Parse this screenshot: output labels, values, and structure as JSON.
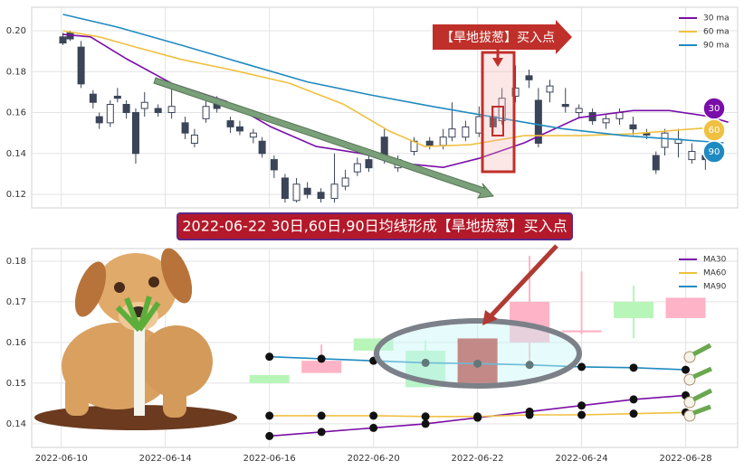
{
  "chart_data": [
    {
      "type": "candlestick",
      "xlim": [
        -0.57,
        13.0
      ],
      "ylim": [
        0.1134,
        0.2115
      ],
      "yticks": [
        0.12,
        0.14,
        0.16,
        0.18,
        {
          "value": 0.2,
          "label": "0.20"
        }
      ],
      "grid": true,
      "legend": "upper right",
      "up_color": "#ffffff",
      "down_color": "#3b4458",
      "candles": {
        "x": [
          0.03,
          0.17,
          0.38,
          0.61,
          0.73,
          0.94,
          1.08,
          1.25,
          1.43,
          1.6,
          1.86,
          2.12,
          2.38,
          2.56,
          2.78,
          2.99,
          3.25,
          3.43,
          3.69,
          3.86,
          4.09,
          4.3,
          4.52,
          4.73,
          4.99,
          5.25,
          5.46,
          5.69,
          5.91,
          6.21,
          6.47,
          6.78,
          7.08,
          7.34,
          7.51,
          7.77,
          8.03,
          8.3,
          8.47,
          8.73,
          8.99,
          9.17,
          9.39,
          9.69,
          9.95,
          10.21,
          10.47,
          10.73,
          10.99,
          11.25,
          11.43,
          11.6,
          11.86,
          12.12,
          12.38
        ],
        "open": [
          0.197,
          0.199,
          0.192,
          0.169,
          0.158,
          0.155,
          0.168,
          0.164,
          0.16,
          0.162,
          0.162,
          0.16,
          0.155,
          0.145,
          0.157,
          0.164,
          0.156,
          0.153,
          0.148,
          0.146,
          0.137,
          0.128,
          0.117,
          0.123,
          0.121,
          0.118,
          0.124,
          0.131,
          0.137,
          0.148,
          0.133,
          0.141,
          0.146,
          0.144,
          0.148,
          0.148,
          0.15,
          0.158,
          0.156,
          0.168,
          0.178,
          0.166,
          0.17,
          0.164,
          0.16,
          0.16,
          0.155,
          0.157,
          0.154,
          0.15,
          0.139,
          0.143,
          0.145,
          0.137,
          0.139
        ],
        "close": [
          0.194,
          0.196,
          0.174,
          0.165,
          0.155,
          0.164,
          0.167,
          0.16,
          0.14,
          0.165,
          0.16,
          0.163,
          0.15,
          0.149,
          0.163,
          0.162,
          0.153,
          0.151,
          0.15,
          0.14,
          0.132,
          0.118,
          0.125,
          0.12,
          0.118,
          0.125,
          0.128,
          0.135,
          0.133,
          0.138,
          0.137,
          0.146,
          0.144,
          0.148,
          0.152,
          0.153,
          0.158,
          0.153,
          0.167,
          0.172,
          0.176,
          0.145,
          0.173,
          0.163,
          0.162,
          0.156,
          0.157,
          0.16,
          0.152,
          0.149,
          0.132,
          0.15,
          0.147,
          0.141,
          0.137
        ],
        "high": [
          0.199,
          0.2,
          0.195,
          0.171,
          0.16,
          0.166,
          0.172,
          0.166,
          0.162,
          0.17,
          0.164,
          0.173,
          0.158,
          0.152,
          0.166,
          0.168,
          0.158,
          0.156,
          0.152,
          0.148,
          0.139,
          0.13,
          0.128,
          0.126,
          0.123,
          0.14,
          0.132,
          0.138,
          0.14,
          0.152,
          0.139,
          0.148,
          0.148,
          0.152,
          0.165,
          0.156,
          0.163,
          0.163,
          0.172,
          0.183,
          0.181,
          0.172,
          0.176,
          0.172,
          0.164,
          0.162,
          0.159,
          0.162,
          0.158,
          0.152,
          0.141,
          0.152,
          0.152,
          0.145,
          0.143
        ],
        "low": [
          0.193,
          0.195,
          0.172,
          0.162,
          0.152,
          0.153,
          0.165,
          0.157,
          0.135,
          0.158,
          0.158,
          0.157,
          0.147,
          0.143,
          0.155,
          0.16,
          0.15,
          0.149,
          0.145,
          0.138,
          0.128,
          0.116,
          0.116,
          0.118,
          0.116,
          0.116,
          0.122,
          0.129,
          0.131,
          0.135,
          0.131,
          0.139,
          0.142,
          0.142,
          0.146,
          0.146,
          0.148,
          0.15,
          0.154,
          0.165,
          0.172,
          0.143,
          0.165,
          0.16,
          0.157,
          0.154,
          0.152,
          0.154,
          0.149,
          0.147,
          0.13,
          0.139,
          0.138,
          0.135,
          0.132
        ]
      },
      "series": [
        {
          "name": "30 ma",
          "color": "#7a0ea8",
          "x": [
            0.03,
            0.56,
            1.25,
            2.12,
            3.17,
            4.03,
            4.9,
            5.77,
            6.47,
            7.34,
            8.03,
            8.9,
            9.95,
            10.99,
            11.69,
            12.38,
            12.82
          ],
          "values": [
            0.1982,
            0.197,
            0.1863,
            0.1743,
            0.1655,
            0.153,
            0.1434,
            0.14,
            0.1354,
            0.1332,
            0.1376,
            0.1452,
            0.1575,
            0.161,
            0.161,
            0.1584,
            0.1553
          ]
        },
        {
          "name": "60 ma",
          "color": "#f0c040",
          "x": [
            0.03,
            0.73,
            1.43,
            2.3,
            3.34,
            4.38,
            5.43,
            6.3,
            6.99,
            7.86,
            8.9,
            9.95,
            10.99,
            12.03,
            12.73
          ],
          "values": [
            0.2,
            0.197,
            0.192,
            0.186,
            0.1805,
            0.1744,
            0.164,
            0.151,
            0.1434,
            0.1443,
            0.1487,
            0.1487,
            0.1496,
            0.1518,
            0.1531
          ]
        },
        {
          "name": "90 ma",
          "color": "#1f8ac0",
          "x": [
            0.03,
            1.08,
            2.3,
            3.51,
            4.73,
            5.95,
            7.17,
            8.38,
            9.6,
            10.82,
            12.03,
            12.73
          ],
          "values": [
            0.208,
            0.2018,
            0.193,
            0.184,
            0.175,
            0.1686,
            0.1628,
            0.1575,
            0.1522,
            0.1487,
            0.1465,
            0.1452
          ]
        }
      ],
      "annotation": "【旱地拔葱】买入点",
      "badges": [
        "30",
        "60",
        "90"
      ]
    },
    {
      "type": "candlestick",
      "categories": [
        "2022-06-10",
        null,
        "2022-06-14",
        null,
        "2022-06-16",
        null,
        "2022-06-20",
        null,
        "2022-06-22",
        null,
        "2022-06-24",
        null,
        "2022-06-28"
      ],
      "ylim": [
        0.1342,
        0.1831
      ],
      "yticks": [
        0.14,
        0.15,
        0.16,
        0.17,
        0.18
      ],
      "grid": true,
      "legend": "upper right",
      "marker_color": "#111111",
      "open": [
        null,
        null,
        null,
        null,
        0.152,
        0.1525,
        0.161,
        0.158,
        0.15,
        0.16,
        0.1625,
        0.17,
        0.166
      ],
      "close": [
        null,
        null,
        null,
        null,
        0.15,
        0.1555,
        0.158,
        0.149,
        0.161,
        0.17,
        0.163,
        0.166,
        0.171
      ],
      "high": [
        null,
        null,
        null,
        null,
        0.152,
        0.1595,
        0.161,
        0.1605,
        0.161,
        0.1813,
        0.1775,
        0.174,
        0.171
      ],
      "low": [
        null,
        null,
        null,
        null,
        0.15,
        0.1525,
        0.158,
        0.149,
        0.15,
        0.1545,
        0.162,
        0.161,
        0.166
      ],
      "candle_colors": [
        null,
        null,
        null,
        null,
        "#b8f5b8",
        "#ffb3c6",
        "#b8f5b8",
        "#b8f5c8",
        "#c0302a",
        "#ffb3c6",
        "#ffb3c6",
        "#b8f5b8",
        "#ffb3c6"
      ],
      "series": [
        {
          "name": "MA30",
          "color": "#7a0ea8",
          "values": [
            null,
            null,
            null,
            null,
            0.137,
            0.138,
            0.139,
            0.14,
            0.1415,
            0.143,
            0.1445,
            0.146,
            0.147
          ]
        },
        {
          "name": "MA60",
          "color": "#f0c040",
          "values": [
            null,
            null,
            null,
            null,
            0.142,
            0.142,
            0.142,
            0.1418,
            0.1418,
            0.1422,
            0.1422,
            0.1425,
            0.1428
          ]
        },
        {
          "name": "MA90",
          "color": "#1f8ac0",
          "values": [
            null,
            null,
            null,
            null,
            0.1565,
            0.156,
            0.1555,
            0.155,
            0.1548,
            0.1545,
            0.154,
            0.1538,
            0.1533
          ]
        }
      ],
      "annotation": "2022-06-22 30日,60日,90日均线形成【旱地拔葱】买入点"
    }
  ]
}
